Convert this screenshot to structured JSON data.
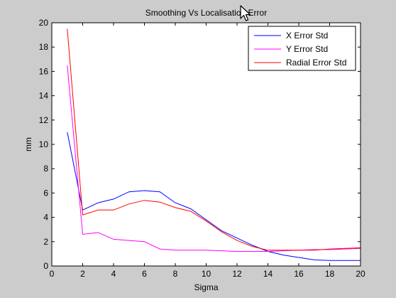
{
  "window": {
    "background": "#cccccc",
    "axes_background": "#ffffff"
  },
  "cursor": {
    "icon": "mouse-pointer-icon"
  },
  "chart_data": {
    "type": "line",
    "title": "Smoothing Vs Localisation Error",
    "xlabel": "Sigma",
    "ylabel": "mm",
    "xlim": [
      0,
      20
    ],
    "ylim": [
      0,
      20
    ],
    "xticks": [
      "0",
      "2",
      "4",
      "6",
      "8",
      "10",
      "12",
      "14",
      "16",
      "18",
      "20"
    ],
    "yticks": [
      "0",
      "2",
      "4",
      "6",
      "8",
      "10",
      "12",
      "14",
      "16",
      "18",
      "20"
    ],
    "grid": false,
    "legend_position": "top-right",
    "x": [
      1,
      2,
      3,
      4,
      5,
      6,
      7,
      8,
      9,
      10,
      11,
      12,
      13,
      14,
      15,
      16,
      17,
      18,
      19,
      20
    ],
    "series": [
      {
        "name": "X Error Std",
        "color": "#0000ff",
        "values": [
          11.0,
          4.6,
          5.2,
          5.5,
          6.1,
          6.2,
          6.1,
          5.2,
          4.7,
          3.8,
          2.9,
          2.3,
          1.7,
          1.2,
          0.9,
          0.7,
          0.5,
          0.45,
          0.45,
          0.45
        ]
      },
      {
        "name": "Y Error Std",
        "color": "#ff00ff",
        "values": [
          16.5,
          2.6,
          2.75,
          2.2,
          2.1,
          2.0,
          1.4,
          1.3,
          1.3,
          1.3,
          1.25,
          1.2,
          1.2,
          1.2,
          1.25,
          1.3,
          1.35,
          1.35,
          1.4,
          1.45
        ]
      },
      {
        "name": "Radial Error Std",
        "color": "#ff0000",
        "values": [
          19.5,
          4.2,
          4.6,
          4.6,
          5.1,
          5.4,
          5.25,
          4.8,
          4.5,
          3.7,
          2.8,
          2.1,
          1.6,
          1.3,
          1.3,
          1.3,
          1.3,
          1.4,
          1.45,
          1.5
        ]
      }
    ]
  }
}
